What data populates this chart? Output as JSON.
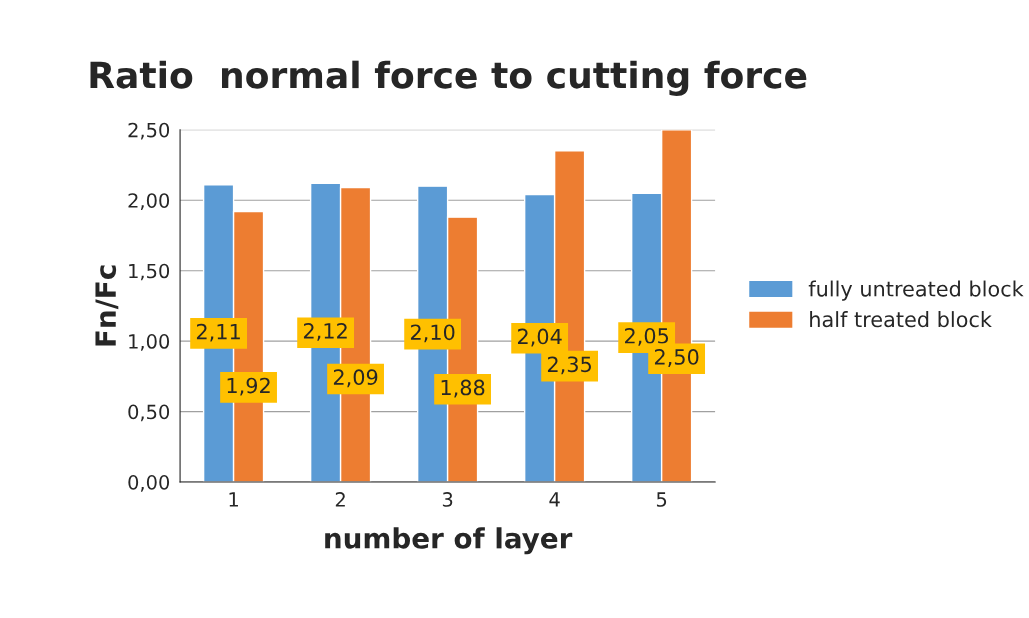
{
  "chart_data": {
    "type": "bar",
    "title": "Ratio  normal force to cutting force",
    "xlabel": "number of layer",
    "ylabel": "Fn/Fc",
    "categories": [
      "1",
      "2",
      "3",
      "4",
      "5"
    ],
    "series": [
      {
        "name": "fully untreated block",
        "color": "#5b9bd5",
        "values": [
          2.11,
          2.12,
          2.1,
          2.04,
          2.05
        ],
        "value_labels": [
          "2,11",
          "2,12",
          "2,10",
          "2,04",
          "2,05"
        ]
      },
      {
        "name": "half treated block",
        "color": "#ed7d31",
        "values": [
          1.92,
          2.09,
          1.88,
          2.35,
          2.5
        ],
        "value_labels": [
          "1,92",
          "2,09",
          "1,88",
          "2,35",
          "2,50"
        ]
      }
    ],
    "ylim": [
      0,
      2.5
    ],
    "yticks": [
      {
        "value": 0,
        "label": "0,00"
      },
      {
        "value": 0.5,
        "label": "0,50"
      },
      {
        "value": 1,
        "label": "1,00"
      },
      {
        "value": 1.5,
        "label": "1,50"
      },
      {
        "value": 2,
        "label": "2,00"
      },
      {
        "value": 2.5,
        "label": "2,50"
      }
    ],
    "grid": "y",
    "legend": "right"
  }
}
